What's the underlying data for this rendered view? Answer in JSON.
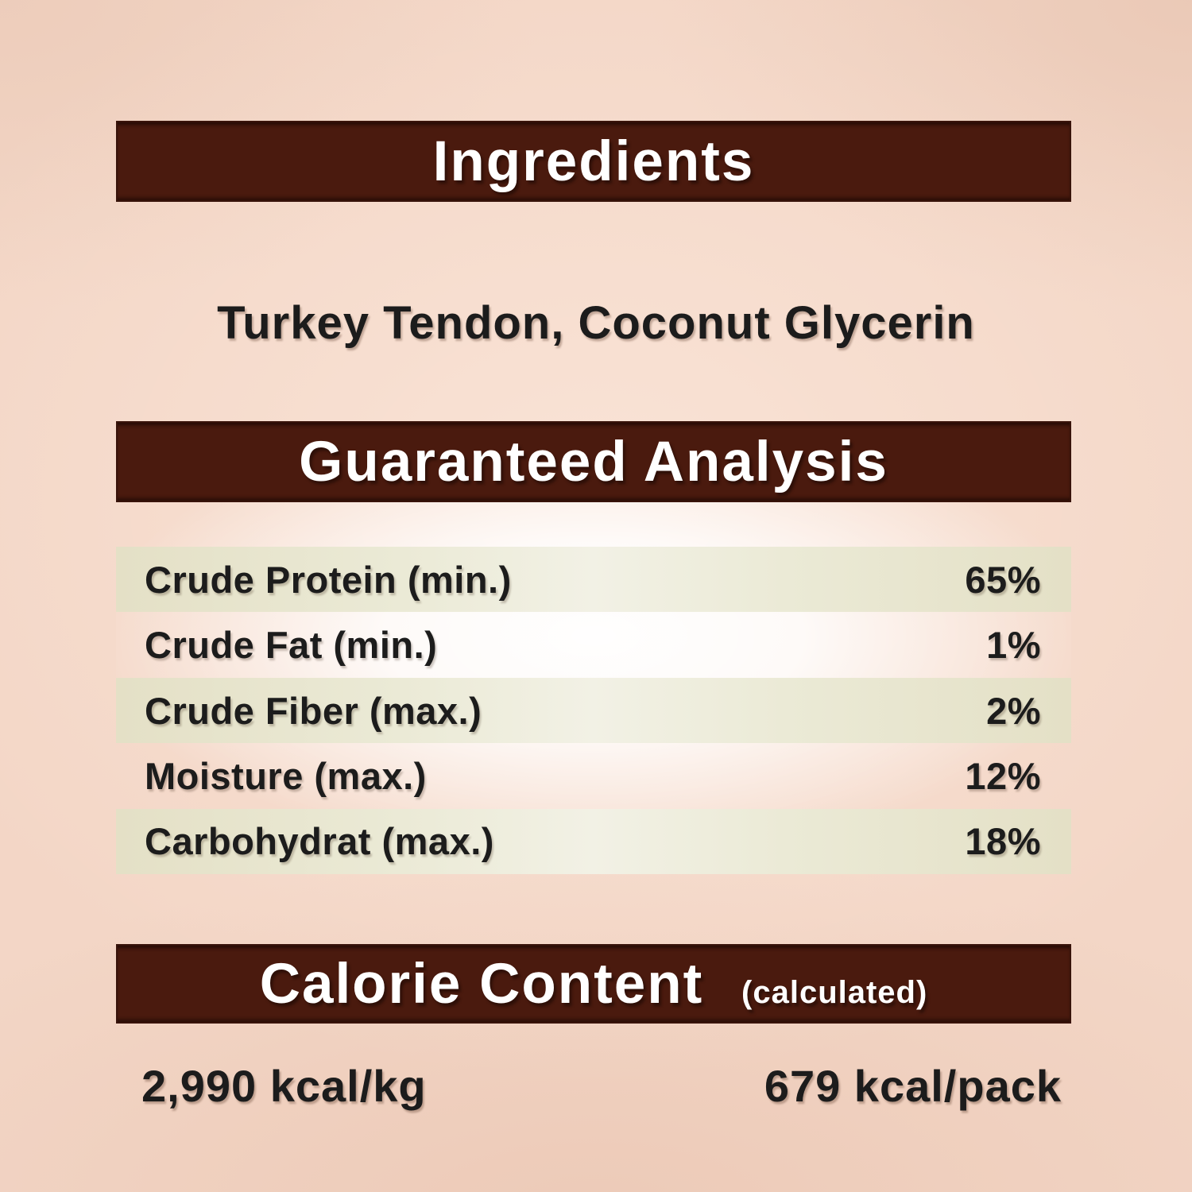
{
  "colors": {
    "page_bg": "#f3d6c6",
    "banner_bg": "#4a1a0e",
    "banner_text": "#ffffff",
    "row_band": "#e4e0c6",
    "text": "#1c1c1c"
  },
  "ingredients": {
    "title": "Ingredients",
    "items_text": "Turkey Tendon, Coconut Glycerin"
  },
  "analysis": {
    "title": "Guaranteed Analysis",
    "rows": [
      {
        "label": "Crude Protein (min.)",
        "value": "65%"
      },
      {
        "label": "Crude Fat (min.)",
        "value": "1%"
      },
      {
        "label": "Crude Fiber (max.)",
        "value": "2%"
      },
      {
        "label": "Moisture (max.)",
        "value": "12%"
      },
      {
        "label": "Carbohydrat (max.)",
        "value": "18%"
      }
    ]
  },
  "calories": {
    "title": "Calorie Content",
    "subtitle": "(calculated)",
    "per_kg": "2,990 kcal/kg",
    "per_pack": "679 kcal/pack"
  }
}
